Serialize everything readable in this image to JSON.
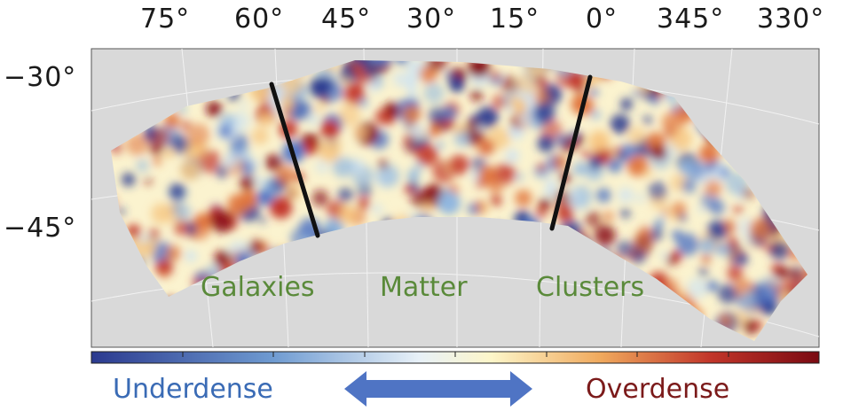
{
  "ra_ticks": [
    "75°",
    "60°",
    "45°",
    "30°",
    "15°",
    "0°",
    "345°",
    "330°"
  ],
  "dec_ticks": [
    "−30°",
    "−45°"
  ],
  "regions": [
    "Galaxies",
    "Matter",
    "Clusters"
  ],
  "legend": {
    "low_label": "Underdense",
    "high_label": "Overdense",
    "low_color": "#3a6bb5",
    "high_color": "#7b1a1a",
    "arrow_color": "#4f74c4",
    "colormap": [
      "#2b3a8f",
      "#6f9bd1",
      "#e8f1f8",
      "#fdf6c9",
      "#f0a95d",
      "#c2362a",
      "#7a0a12"
    ]
  },
  "colors": {
    "background_panel": "#d9d9d9",
    "boundary_line": "#111111",
    "region_text": "#5a8a3a"
  }
}
